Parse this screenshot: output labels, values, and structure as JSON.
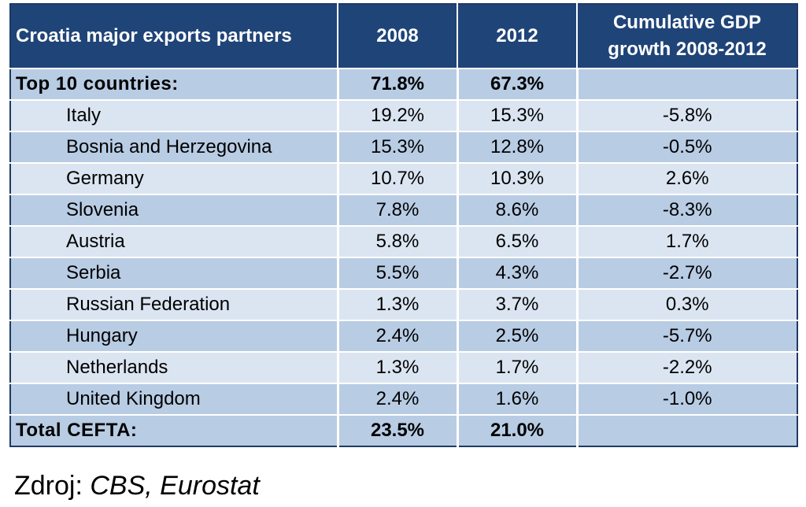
{
  "chart_data": {
    "type": "table",
    "columns": [
      "Croatia major exports partners",
      "2008",
      "2012",
      "Cumulative GDP growth 2008-2012"
    ],
    "summary_top": {
      "label": "Top 10 countries:",
      "v2008": "71.8%",
      "v2012": "67.3%",
      "gdp": ""
    },
    "rows": [
      {
        "country": "Italy",
        "v2008": "19.2%",
        "v2012": "15.3%",
        "gdp": "-5.8%"
      },
      {
        "country": "Bosnia and Herzegovina",
        "v2008": "15.3%",
        "v2012": "12.8%",
        "gdp": "-0.5%"
      },
      {
        "country": "Germany",
        "v2008": "10.7%",
        "v2012": "10.3%",
        "gdp": "2.6%"
      },
      {
        "country": "Slovenia",
        "v2008": "7.8%",
        "v2012": "8.6%",
        "gdp": "-8.3%"
      },
      {
        "country": "Austria",
        "v2008": "5.8%",
        "v2012": "6.5%",
        "gdp": "1.7%"
      },
      {
        "country": "Serbia",
        "v2008": "5.5%",
        "v2012": "4.3%",
        "gdp": "-2.7%"
      },
      {
        "country": "Russian Federation",
        "v2008": "1.3%",
        "v2012": "3.7%",
        "gdp": "0.3%"
      },
      {
        "country": "Hungary",
        "v2008": "2.4%",
        "v2012": "2.5%",
        "gdp": "-5.7%"
      },
      {
        "country": "Netherlands",
        "v2008": "1.3%",
        "v2012": "1.7%",
        "gdp": "-2.2%"
      },
      {
        "country": "United Kingdom",
        "v2008": "2.4%",
        "v2012": "1.6%",
        "gdp": "-1.0%"
      }
    ],
    "summary_bottom": {
      "label": "Total CEFTA:",
      "v2008": "23.5%",
      "v2012": "21.0%",
      "gdp": ""
    }
  },
  "colors": {
    "header_bg": "#1f4478",
    "row_dark": "#b8cce4",
    "row_light": "#dbe5f1"
  },
  "source": {
    "prefix": "Zdroj: ",
    "text": "CBS, Eurostat"
  }
}
